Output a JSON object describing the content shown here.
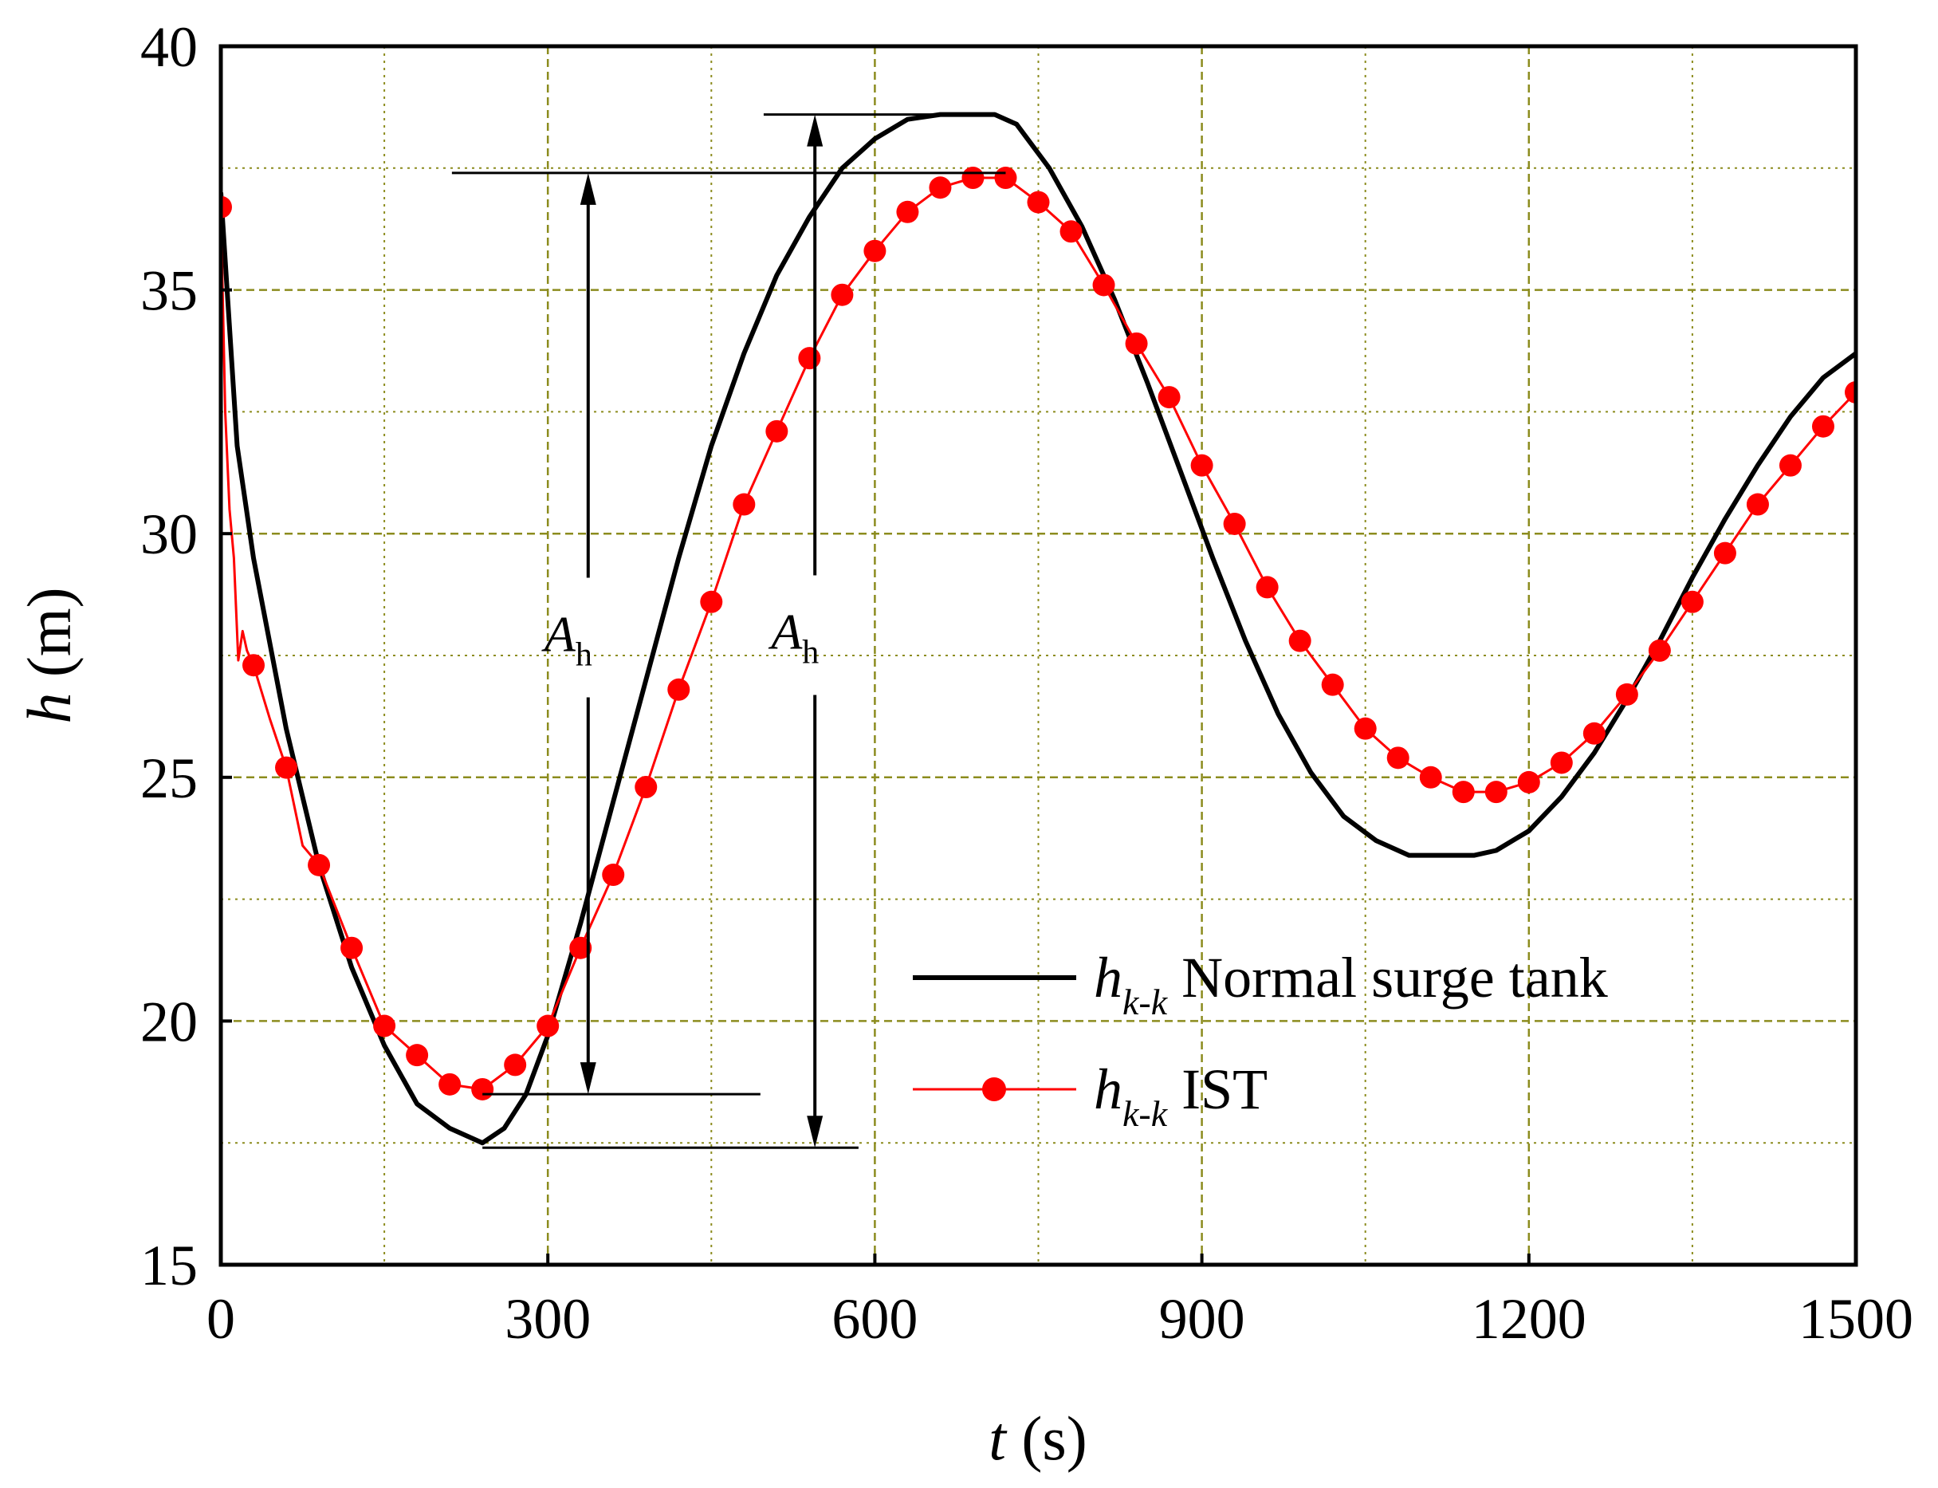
{
  "chart_data": {
    "type": "line",
    "title": "",
    "xlabel": {
      "italic": "t",
      "rest": " (s)"
    },
    "ylabel": {
      "italic": "h",
      "rest": " (m)"
    },
    "xlim": [
      0,
      1500
    ],
    "ylim": [
      15,
      40
    ],
    "xticks": [
      0,
      300,
      600,
      900,
      1200,
      1500
    ],
    "yticks": [
      15,
      20,
      25,
      30,
      35,
      40
    ],
    "grid": true,
    "legend_position": "bottom-right",
    "series": [
      {
        "name": "h k-k Normal surge tank",
        "label_main": "h",
        "label_sub": "k-k",
        "label_text": " Normal surge tank",
        "color": "#000000",
        "marker": "none",
        "x": [
          0,
          15,
          30,
          60,
          90,
          120,
          150,
          180,
          210,
          240,
          260,
          280,
          300,
          330,
          360,
          390,
          420,
          450,
          480,
          510,
          540,
          570,
          600,
          630,
          660,
          690,
          710,
          730,
          760,
          790,
          820,
          850,
          880,
          910,
          940,
          970,
          1000,
          1030,
          1060,
          1090,
          1120,
          1150,
          1170,
          1200,
          1230,
          1260,
          1290,
          1320,
          1350,
          1380,
          1410,
          1440,
          1470,
          1500
        ],
        "y": [
          37.0,
          31.8,
          29.5,
          26.0,
          23.2,
          21.1,
          19.5,
          18.3,
          17.8,
          17.5,
          17.8,
          18.5,
          19.7,
          22.0,
          24.5,
          27.0,
          29.5,
          31.8,
          33.7,
          35.3,
          36.5,
          37.5,
          38.1,
          38.5,
          38.6,
          38.6,
          38.6,
          38.4,
          37.5,
          36.3,
          34.8,
          33.1,
          31.3,
          29.5,
          27.8,
          26.3,
          25.1,
          24.2,
          23.7,
          23.4,
          23.4,
          23.4,
          23.5,
          23.9,
          24.6,
          25.5,
          26.6,
          27.8,
          29.1,
          30.3,
          31.4,
          32.4,
          33.2,
          33.7
        ]
      },
      {
        "name": "h k-k IST",
        "label_main": "h",
        "label_sub": "k-k",
        "label_text": " IST",
        "color": "#ff0000",
        "marker": "circle",
        "x": [
          0,
          4,
          8,
          12,
          16,
          20,
          24,
          30,
          45,
          60,
          75,
          90,
          120,
          150,
          180,
          210,
          240,
          270,
          300,
          330,
          360,
          390,
          420,
          450,
          480,
          510,
          540,
          570,
          600,
          630,
          660,
          690,
          720,
          750,
          780,
          810,
          840,
          870,
          900,
          930,
          960,
          990,
          1020,
          1050,
          1080,
          1110,
          1140,
          1170,
          1200,
          1230,
          1260,
          1290,
          1320,
          1350,
          1380,
          1410,
          1440,
          1470,
          1500
        ],
        "y": [
          36.7,
          32.5,
          30.5,
          29.5,
          27.4,
          28.0,
          27.6,
          27.3,
          26.2,
          25.2,
          23.6,
          23.2,
          21.5,
          19.9,
          19.3,
          18.7,
          18.6,
          19.1,
          19.9,
          21.5,
          23.0,
          24.8,
          26.8,
          28.6,
          30.6,
          32.1,
          33.6,
          34.9,
          35.8,
          36.6,
          37.1,
          37.3,
          37.3,
          36.8,
          36.2,
          35.1,
          33.9,
          32.8,
          31.4,
          30.2,
          28.9,
          27.8,
          26.9,
          26.0,
          25.4,
          25.0,
          24.7,
          24.7,
          24.9,
          25.3,
          25.9,
          26.7,
          27.6,
          28.6,
          29.6,
          30.6,
          31.4,
          32.2,
          32.9
        ],
        "markers_x": [
          0,
          30,
          60,
          90,
          120,
          150,
          180,
          210,
          240,
          270,
          300,
          330,
          360,
          390,
          420,
          450,
          480,
          510,
          540,
          570,
          600,
          630,
          660,
          690,
          720,
          750,
          780,
          810,
          840,
          870,
          900,
          930,
          960,
          990,
          1020,
          1050,
          1080,
          1110,
          1140,
          1170,
          1200,
          1230,
          1260,
          1290,
          1320,
          1350,
          1380,
          1410,
          1440,
          1470,
          1500
        ]
      }
    ],
    "annotations": [
      {
        "id": "ah-ist",
        "main": "A",
        "sub": "h",
        "x_top": 337,
        "y_top": 37.4,
        "y_bottom": 18.5,
        "line_top_from": 212,
        "line_top_to": 720,
        "line_bottom_from": 240,
        "line_bottom_to": 495
      },
      {
        "id": "ah-normal",
        "main": "A",
        "sub": "h",
        "x_top": 545,
        "y_top": 38.6,
        "y_bottom": 17.4,
        "line_top_from": 498,
        "line_top_to": 700,
        "line_bottom_from": 240,
        "line_bottom_to": 585
      }
    ]
  }
}
